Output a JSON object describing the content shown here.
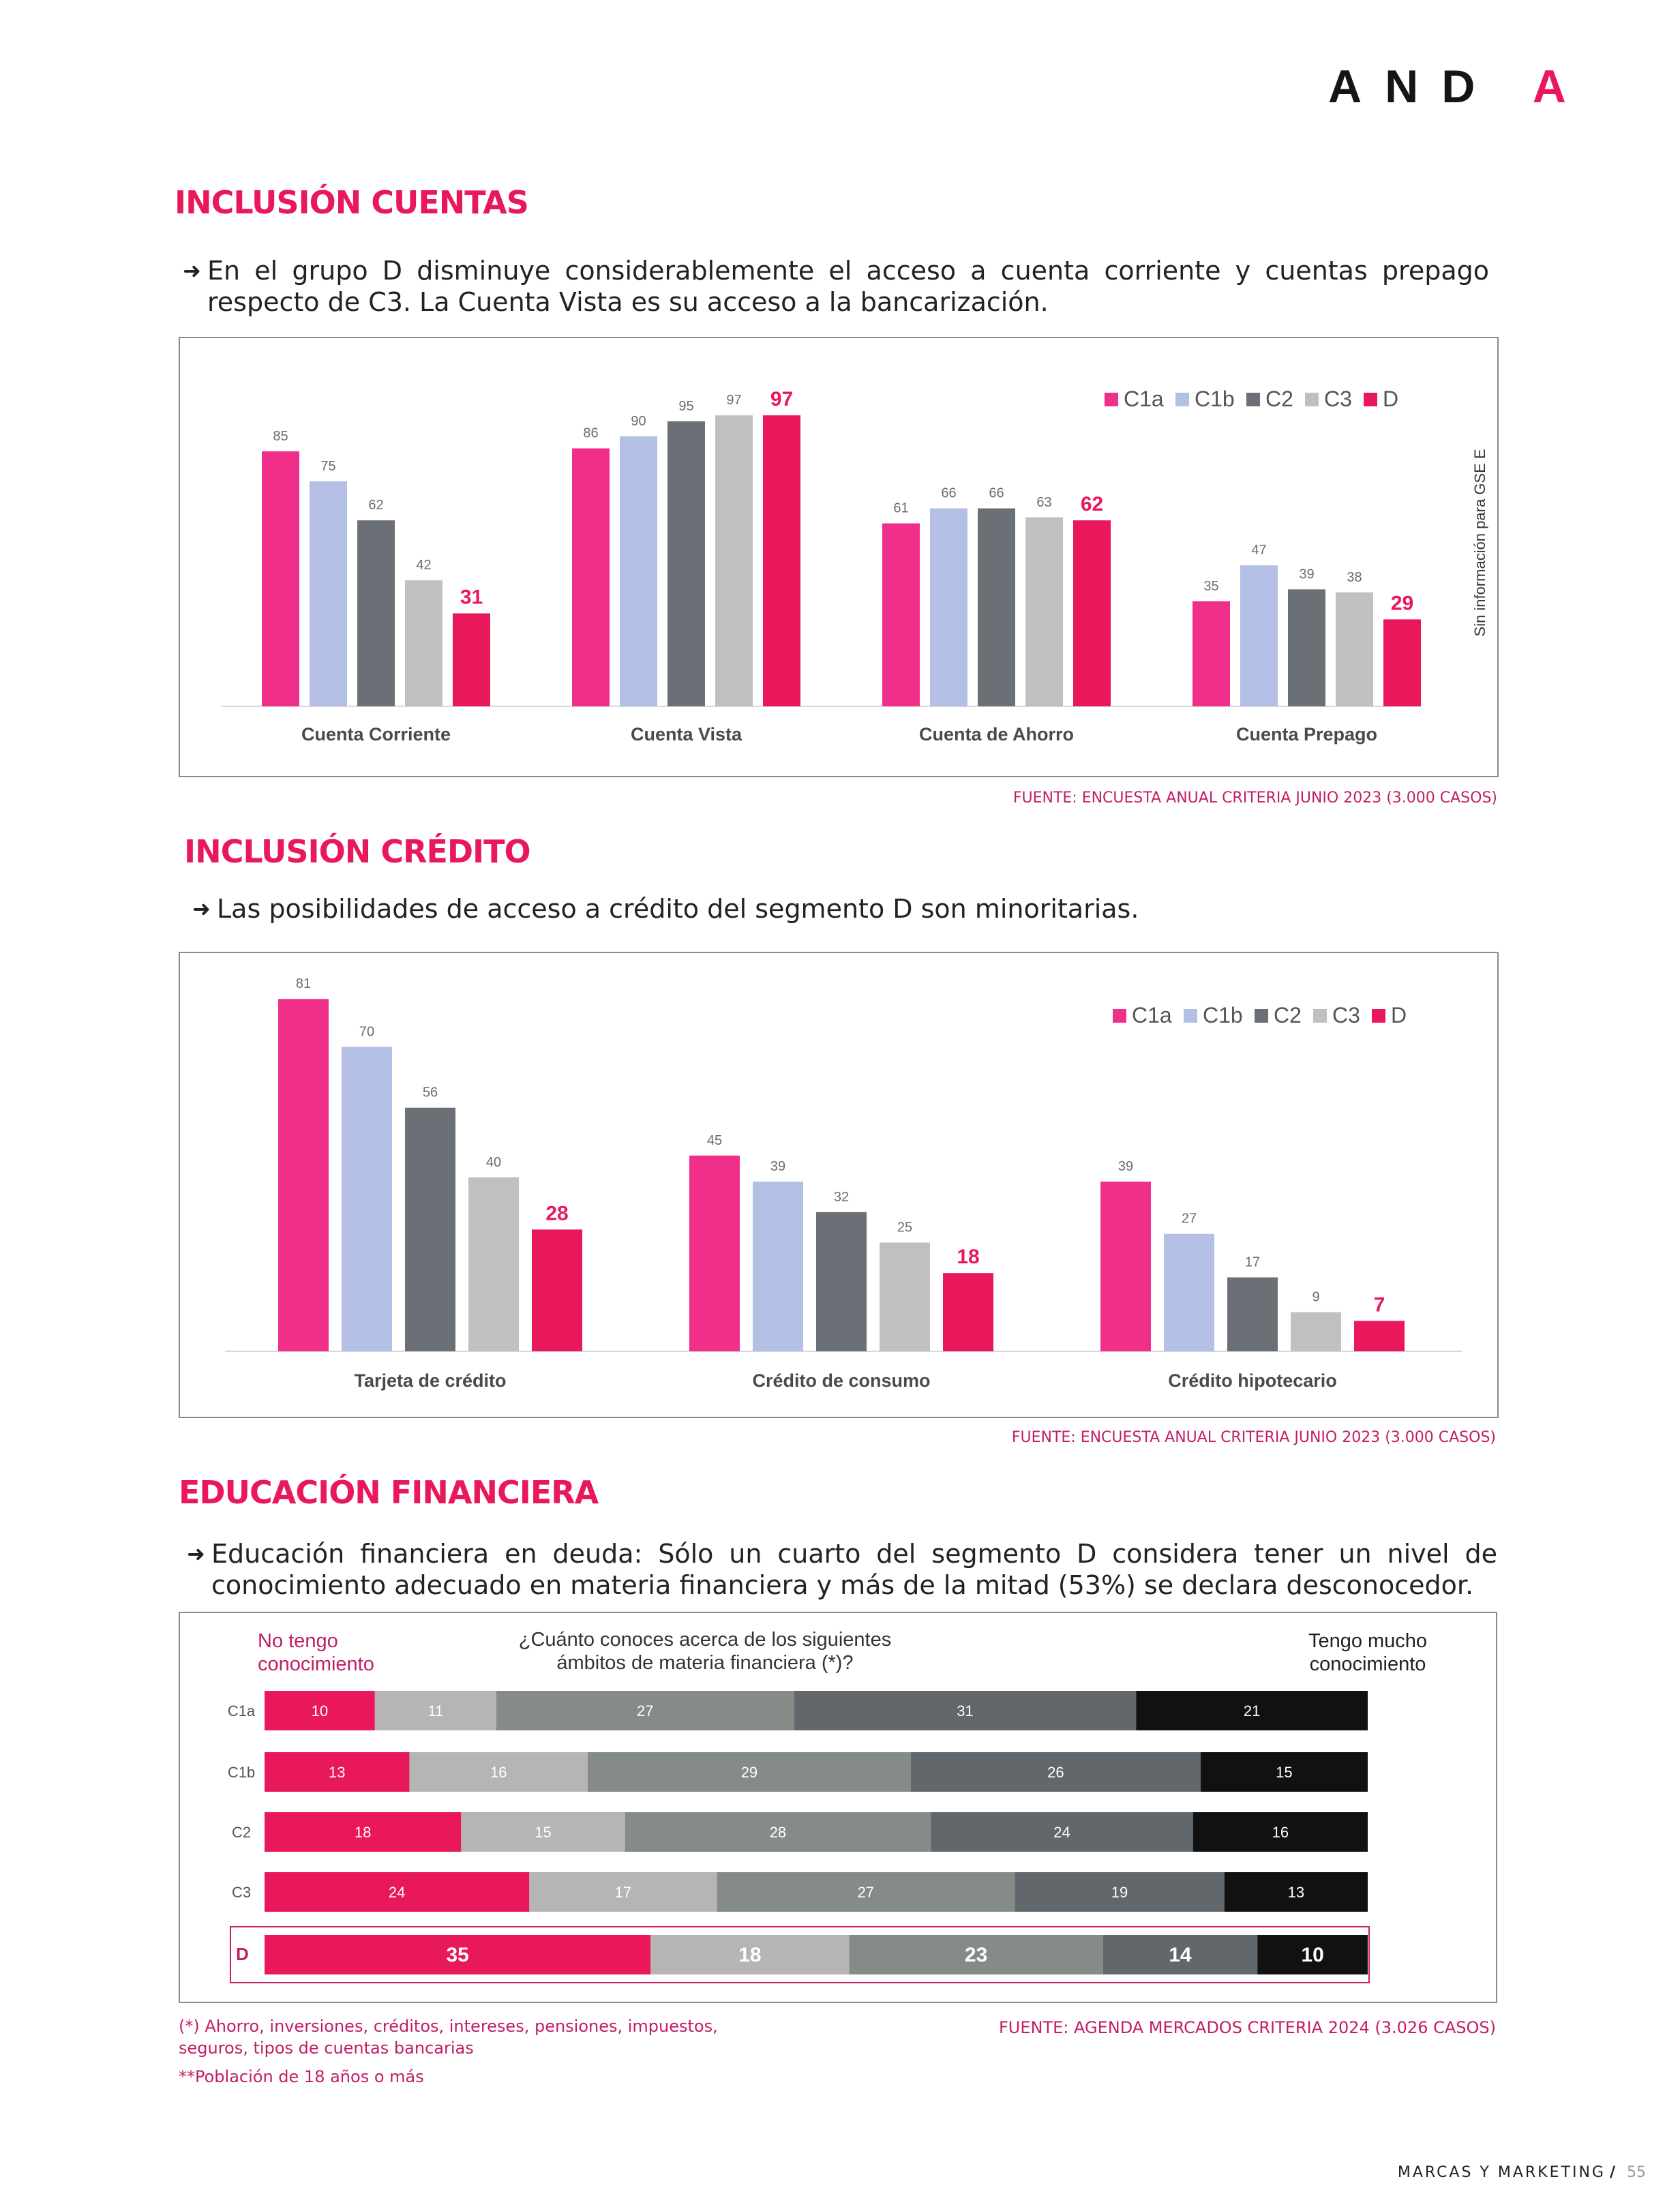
{
  "header": {
    "logo": "ANDA"
  },
  "sections": [
    {
      "title": "INCLUSIÓN CUENTAS",
      "bullet": "En el grupo D disminuye considerablemente el acceso a cuenta corriente y cuentas prepago respecto de C3. La Cuenta Vista es su acceso a la bancarización.",
      "source": "FUENTE: ENCUESTA ANUAL CRITERIA JUNIO 2023 (3.000 CASOS)"
    },
    {
      "title": "INCLUSIÓN CRÉDITO",
      "bullet": "Las posibilidades de acceso a crédito del segmento D son minoritarias.",
      "source": "FUENTE: ENCUESTA ANUAL CRITERIA JUNIO 2023 (3.000 CASOS)"
    },
    {
      "title": "EDUCACIÓN FINANCIERA",
      "bullet": "Educación financiera en deuda: Sólo un cuarto del segmento D considera tener un nivel de conocimiento adecuado en materia financiera y más de la mitad (53%) se declara desconocedor.",
      "source": "FUENTE: AGENDA MERCADOS CRITERIA 2024 (3.026 CASOS)"
    }
  ],
  "chart_data": [
    {
      "type": "bar",
      "categories": [
        "Cuenta Corriente",
        "Cuenta Vista",
        "Cuenta de Ahorro",
        "Cuenta Prepago"
      ],
      "series": [
        {
          "name": "C1a",
          "color": "#ef2f8a",
          "values": [
            85,
            86,
            61,
            35
          ]
        },
        {
          "name": "C1b",
          "color": "#b4bfe6",
          "values": [
            75,
            90,
            66,
            47
          ]
        },
        {
          "name": "C2",
          "color": "#6a7075",
          "values": [
            62,
            95,
            66,
            39
          ]
        },
        {
          "name": "C3",
          "color": "#c0c0c0",
          "values": [
            42,
            97,
            63,
            38
          ]
        },
        {
          "name": "D",
          "color": "#e8185a",
          "values": [
            31,
            97,
            62,
            29
          ]
        }
      ],
      "legend": "top-right",
      "side_note": "Sin información para GSE E",
      "ylim": [
        0,
        100
      ]
    },
    {
      "type": "bar",
      "categories": [
        "Tarjeta de crédito",
        "Crédito de consumo",
        "Crédito hipotecario"
      ],
      "series": [
        {
          "name": "C1a",
          "color": "#ef2f8a",
          "values": [
            81,
            45,
            39
          ]
        },
        {
          "name": "C1b",
          "color": "#b4bfe6",
          "values": [
            70,
            39,
            27
          ]
        },
        {
          "name": "C2",
          "color": "#6a7075",
          "values": [
            56,
            32,
            17
          ]
        },
        {
          "name": "C3",
          "color": "#c0c0c0",
          "values": [
            40,
            25,
            9
          ]
        },
        {
          "name": "D",
          "color": "#e8185a",
          "values": [
            28,
            18,
            7
          ]
        }
      ],
      "legend": "top-right",
      "ylim": [
        0,
        85
      ]
    },
    {
      "type": "bar",
      "orientation": "horizontal-stacked",
      "title": "¿Cuánto conoces acerca de los siguientes ámbitos de materia financiera (*)?",
      "left_label": "No tengo conocimiento",
      "right_label": "Tengo mucho conocimiento",
      "categories": [
        "C1a",
        "C1b",
        "C2",
        "C3",
        "D"
      ],
      "segment_colors": [
        "#e8185a",
        "#b5b5b5",
        "#858c88",
        "#62676b",
        "#111111"
      ],
      "rows": [
        [
          10,
          11,
          27,
          31,
          21
        ],
        [
          13,
          16,
          29,
          26,
          15
        ],
        [
          18,
          15,
          28,
          24,
          16
        ],
        [
          24,
          17,
          27,
          19,
          13
        ],
        [
          35,
          18,
          23,
          14,
          10
        ]
      ],
      "highlight": "D"
    }
  ],
  "footnotes": [
    "(*) Ahorro, inversiones, créditos, intereses, pensiones, impuestos, seguros, tipos de cuentas bancarias",
    "**Población de 18 años o más"
  ],
  "footer": {
    "text": "MARCAS Y MARKETING",
    "page": "55"
  }
}
